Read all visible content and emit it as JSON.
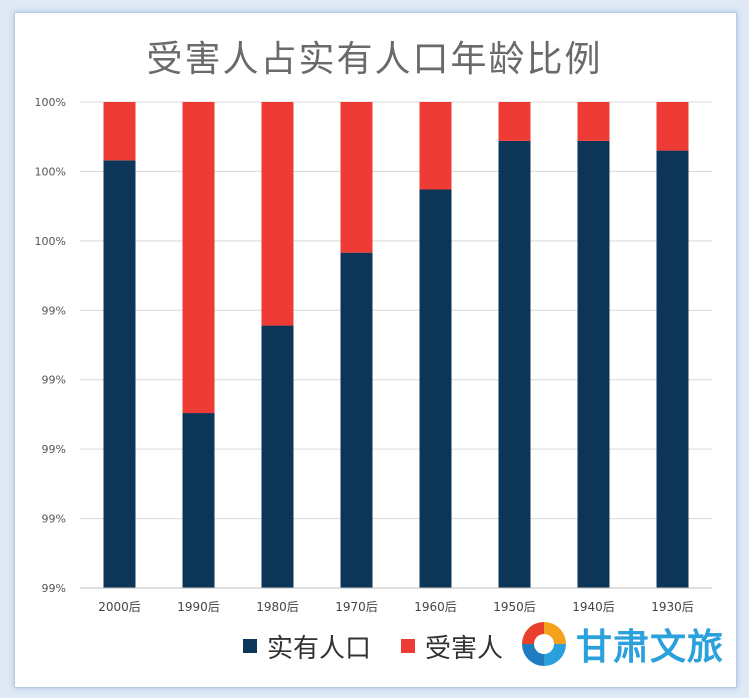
{
  "chart_data": {
    "type": "bar",
    "stacked": true,
    "normalized": true,
    "title": "受害人占实有人口年龄比例",
    "categories": [
      "2000后",
      "1990后",
      "1980后",
      "1970后",
      "1960后",
      "1950后",
      "1940后",
      "1930后"
    ],
    "series": [
      {
        "name": "实有人口",
        "color": "#0d3557",
        "values": [
          0.88,
          0.36,
          0.54,
          0.69,
          0.82,
          0.92,
          0.92,
          0.9
        ]
      },
      {
        "name": "受害人",
        "color": "#ef3b36",
        "values": [
          0.12,
          0.64,
          0.46,
          0.31,
          0.18,
          0.08,
          0.08,
          0.1
        ]
      }
    ],
    "y_tick_labels": [
      "99%",
      "99%",
      "99%",
      "99%",
      "99%",
      "100%",
      "100%",
      "100%"
    ],
    "ylim": [
      0,
      1
    ],
    "grid": true,
    "legend": "bottom"
  },
  "watermark": {
    "text": "甘肃文旅"
  }
}
